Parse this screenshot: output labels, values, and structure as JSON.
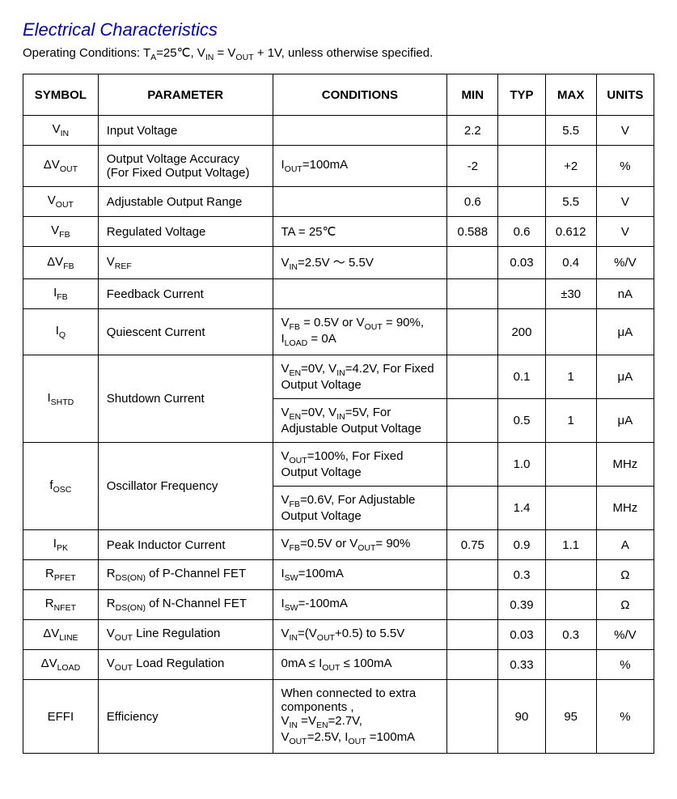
{
  "title": "Electrical Characteristics",
  "operating_conditions": {
    "prefix": "Operating Conditions: T",
    "sub1": "A",
    "mid1": "=25℃, V",
    "sub2": "IN",
    "mid2": " = V",
    "sub3": "OUT",
    "suffix": " + 1V, unless otherwise specified."
  },
  "headers": {
    "symbol": "SYMBOL",
    "parameter": "PARAMETER",
    "conditions": "CONDITIONS",
    "min": "MIN",
    "typ": "TYP",
    "max": "MAX",
    "units": "UNITS"
  },
  "rows": {
    "vin": {
      "sym_pre": "V",
      "sym_sub": "IN",
      "param": "Input Voltage",
      "min": "2.2",
      "max": "5.5",
      "units": "V"
    },
    "dvout": {
      "sym_pre": "ΔV",
      "sym_sub": "OUT",
      "param": "Output Voltage Accuracy (For Fixed Output Voltage)",
      "cond_pre": "I",
      "cond_sub": "OUT",
      "cond_post": "=100mA",
      "min": "-2",
      "max": "+2",
      "units": "%"
    },
    "vout": {
      "sym_pre": "V",
      "sym_sub": "OUT",
      "param": "Adjustable Output Range",
      "min": "0.6",
      "max": "5.5",
      "units": "V"
    },
    "vfb": {
      "sym_pre": "V",
      "sym_sub": "FB",
      "param": "Regulated Voltage",
      "cond": "TA = 25℃",
      "min": "0.588",
      "typ": "0.6",
      "max": "0.612",
      "units": "V"
    },
    "dvfb": {
      "sym_pre": "ΔV",
      "sym_sub": "FB",
      "param_pre": "V",
      "param_sub": "REF",
      "cond_pre": "V",
      "cond_sub": "IN",
      "cond_post": "=2.5V  ～  5.5V",
      "typ": "0.03",
      "max": "0.4",
      "units": "%/V"
    },
    "ifb": {
      "sym_pre": "I",
      "sym_sub": "FB",
      "param": "Feedback Current",
      "max": "±30",
      "units": "nA"
    },
    "iq": {
      "sym_pre": "I",
      "sym_sub": "Q",
      "param": "Quiescent Current",
      "c1": "V",
      "c1s": "FB",
      "c2": " = 0.5V or V",
      "c2s": "OUT",
      "c3": " = 90%, I",
      "c3s": "LOAD",
      "c4": " = 0A",
      "typ": "200",
      "units": "μA"
    },
    "ishtd": {
      "sym_pre": "I",
      "sym_sub": "SHTD",
      "param": "Shutdown Current",
      "row1": {
        "c1": "V",
        "c1s": "EN",
        "c2": "=0V, V",
        "c2s": "IN",
        "c3": "=4.2V, For Fixed Output Voltage",
        "typ": "0.1",
        "max": "1",
        "units": "μA"
      },
      "row2": {
        "c1": "V",
        "c1s": "EN",
        "c2": "=0V, V",
        "c2s": "IN",
        "c3": "=5V, For Adjustable Output Voltage",
        "typ": "0.5",
        "max": "1",
        "units": "μA"
      }
    },
    "fosc": {
      "sym_pre": "f",
      "sym_sub": "OSC",
      "param": "Oscillator Frequency",
      "row1": {
        "c1": "V",
        "c1s": "OUT",
        "c2": "=100%, For Fixed Output Voltage",
        "typ": "1.0",
        "units": "MHz"
      },
      "row2": {
        "c1": "V",
        "c1s": "FB",
        "c2": "=0.6V, For Adjustable Output Voltage",
        "typ": "1.4",
        "units": "MHz"
      }
    },
    "ipk": {
      "sym_pre": "I",
      "sym_sub": "PK",
      "param": "Peak Inductor Current",
      "c1": "V",
      "c1s": "FB",
      "c2": "=0.5V or V",
      "c2s": "OUT",
      "c3": "= 90%",
      "min": "0.75",
      "typ": "0.9",
      "max": "1.1",
      "units": "A"
    },
    "rpfet": {
      "sym_pre": "R",
      "sym_sub": "PFET",
      "p1": "R",
      "p1s": "DS(ON)",
      "p2": " of P-Channel FET",
      "c1": "I",
      "c1s": "SW",
      "c2": "=100mA",
      "typ": "0.3",
      "units": "Ω"
    },
    "rnfet": {
      "sym_pre": "R",
      "sym_sub": "NFET",
      "p1": "R",
      "p1s": "DS(ON)",
      "p2": " of N-Channel FET",
      "c1": "I",
      "c1s": "SW",
      "c2": "=-100mA",
      "typ": "0.39",
      "units": "Ω"
    },
    "dvline": {
      "sym_pre": "ΔV",
      "sym_sub": "LINE",
      "p1": "V",
      "p1s": "OUT",
      "p2": " Line Regulation",
      "c1": "V",
      "c1s": "IN",
      "c2": "=(V",
      "c2s": "OUT",
      "c3": "+0.5) to 5.5V",
      "typ": "0.03",
      "max": "0.3",
      "units": "%/V"
    },
    "dvload": {
      "sym_pre": "ΔV",
      "sym_sub": "LOAD",
      "p1": "V",
      "p1s": "OUT",
      "p2": " Load Regulation",
      "c1": "0mA ≤ I",
      "c1s": "OUT",
      "c2": " ≤ 100mA",
      "typ": "0.33",
      "units": "%"
    },
    "effi": {
      "sym": "EFFI",
      "param": "Efficiency",
      "c1": "When connected to extra components ,",
      "c2": "V",
      "c2s": "IN",
      "c3": " =V",
      "c3s": "EN",
      "c4": "=2.7V,",
      "c5": "V",
      "c5s": "OUT",
      "c6": "=2.5V, I",
      "c6s": "OUT",
      "c7": " =100mA",
      "typ": "90",
      "max": "95",
      "units": "%"
    }
  }
}
